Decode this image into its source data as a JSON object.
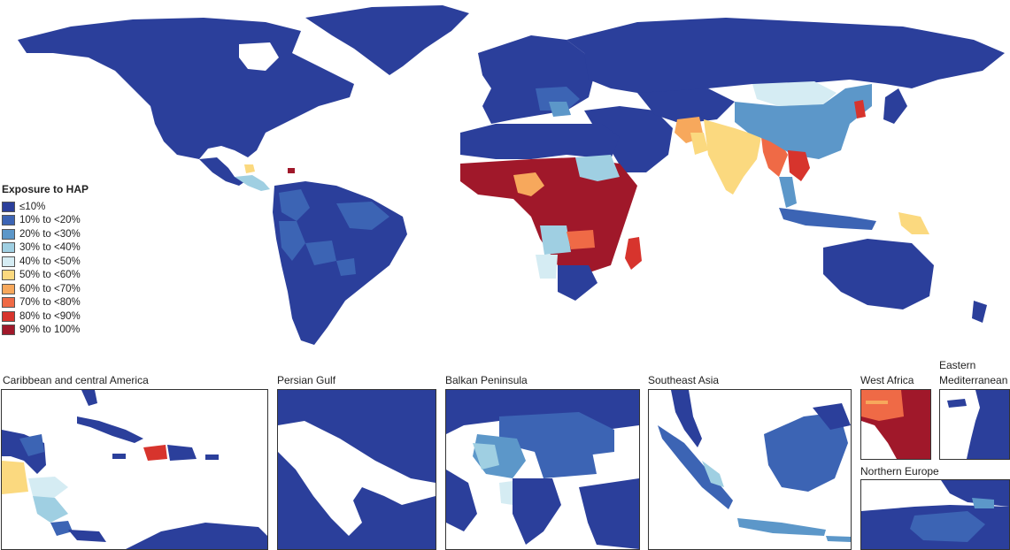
{
  "legend": {
    "title": "Exposure to HAP",
    "items": [
      {
        "label": "≤10%",
        "color": "#2b3f9b"
      },
      {
        "label": "10% to <20%",
        "color": "#3c64b4"
      },
      {
        "label": "20% to <30%",
        "color": "#5c97c9"
      },
      {
        "label": "30% to <40%",
        "color": "#9fcfe2"
      },
      {
        "label": "40% to <50%",
        "color": "#d5ecf3"
      },
      {
        "label": "50% to <60%",
        "color": "#fbd97f"
      },
      {
        "label": "60% to <70%",
        "color": "#f7a85c"
      },
      {
        "label": "70% to <80%",
        "color": "#ef6a46"
      },
      {
        "label": "80% to <90%",
        "color": "#d7342d"
      },
      {
        "label": "90% to 100%",
        "color": "#a0182a"
      }
    ]
  },
  "insets": [
    {
      "title": "Caribbean and central America"
    },
    {
      "title": "Persian Gulf"
    },
    {
      "title": "Balkan Peninsula"
    },
    {
      "title": "Southeast Asia"
    },
    {
      "title": "West Africa"
    },
    {
      "title": "Eastern"
    },
    {
      "title": "Mediterranean"
    },
    {
      "title": "Northern Europe"
    }
  ]
}
